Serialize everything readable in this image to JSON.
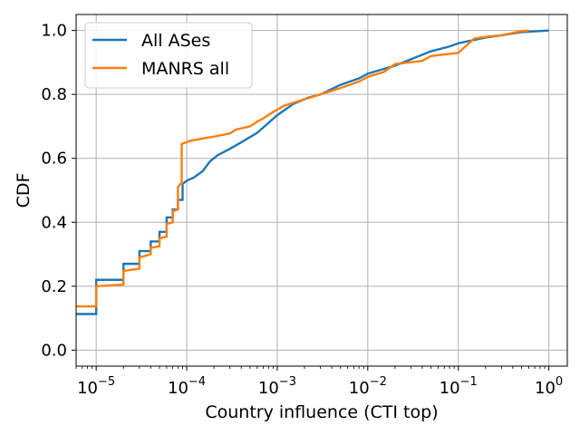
{
  "chart_data": {
    "type": "line",
    "title": "",
    "xlabel": "Country influence (CTI top)",
    "ylabel": "CDF",
    "xscale": "log",
    "xlim": [
      6e-06,
      1.6
    ],
    "ylim": [
      -0.05,
      1.05
    ],
    "grid": true,
    "legend_position": "top-left",
    "x_ticks": [
      {
        "base": "10",
        "exp": "−5",
        "value": 1e-05
      },
      {
        "base": "10",
        "exp": "−4",
        "value": 0.0001
      },
      {
        "base": "10",
        "exp": "−3",
        "value": 0.001
      },
      {
        "base": "10",
        "exp": "−2",
        "value": 0.01
      },
      {
        "base": "10",
        "exp": "−1",
        "value": 0.1
      },
      {
        "base": "10",
        "exp": "0",
        "value": 1
      }
    ],
    "y_ticks": [
      "0.0",
      "0.2",
      "0.4",
      "0.6",
      "0.8",
      "1.0"
    ],
    "y_tick_values": [
      0.0,
      0.2,
      0.4,
      0.6,
      0.8,
      1.0
    ],
    "series": [
      {
        "name": "All ASes",
        "color": "#1f77b4",
        "step": true,
        "points": [
          [
            6e-06,
            0.113
          ],
          [
            1e-05,
            0.113
          ],
          [
            1e-05,
            0.22
          ],
          [
            2e-05,
            0.22
          ],
          [
            2e-05,
            0.27
          ],
          [
            3e-05,
            0.27
          ],
          [
            3e-05,
            0.31
          ],
          [
            4e-05,
            0.31
          ],
          [
            4e-05,
            0.34
          ],
          [
            5e-05,
            0.34
          ],
          [
            5e-05,
            0.37
          ],
          [
            6e-05,
            0.37
          ],
          [
            6e-05,
            0.415
          ],
          [
            7e-05,
            0.415
          ],
          [
            7e-05,
            0.44
          ],
          [
            8e-05,
            0.44
          ],
          [
            8e-05,
            0.47
          ],
          [
            9e-05,
            0.47
          ],
          [
            9e-05,
            0.52
          ],
          [
            0.0001,
            0.53
          ],
          [
            0.00012,
            0.54
          ],
          [
            0.00015,
            0.56
          ],
          [
            0.00018,
            0.59
          ],
          [
            0.00022,
            0.61
          ],
          [
            0.0003,
            0.63
          ],
          [
            0.0004,
            0.65
          ],
          [
            0.0006,
            0.68
          ],
          [
            0.001,
            0.735
          ],
          [
            0.0015,
            0.77
          ],
          [
            0.0022,
            0.79
          ],
          [
            0.003,
            0.8
          ],
          [
            0.005,
            0.83
          ],
          [
            0.008,
            0.85
          ],
          [
            0.01,
            0.865
          ],
          [
            0.02,
            0.89
          ],
          [
            0.03,
            0.91
          ],
          [
            0.05,
            0.935
          ],
          [
            0.08,
            0.95
          ],
          [
            0.1,
            0.96
          ],
          [
            0.2,
            0.978
          ],
          [
            0.3,
            0.985
          ],
          [
            0.5,
            0.995
          ],
          [
            1.0,
            1.0
          ]
        ]
      },
      {
        "name": "MANRS all",
        "color": "#ff7f0e",
        "step": true,
        "points": [
          [
            6e-06,
            0.137
          ],
          [
            1e-05,
            0.137
          ],
          [
            1e-05,
            0.2
          ],
          [
            2e-05,
            0.205
          ],
          [
            2e-05,
            0.248
          ],
          [
            3e-05,
            0.255
          ],
          [
            3e-05,
            0.29
          ],
          [
            4e-05,
            0.3
          ],
          [
            4e-05,
            0.32
          ],
          [
            5e-05,
            0.325
          ],
          [
            5e-05,
            0.35
          ],
          [
            6e-05,
            0.355
          ],
          [
            6e-05,
            0.395
          ],
          [
            7e-05,
            0.4
          ],
          [
            7e-05,
            0.435
          ],
          [
            8e-05,
            0.44
          ],
          [
            8e-05,
            0.51
          ],
          [
            8.5e-05,
            0.52
          ],
          [
            8.8e-05,
            0.52
          ],
          [
            8.8e-05,
            0.645
          ],
          [
            0.00011,
            0.655
          ],
          [
            0.00015,
            0.662
          ],
          [
            0.0002,
            0.668
          ],
          [
            0.0003,
            0.678
          ],
          [
            0.00035,
            0.69
          ],
          [
            0.0005,
            0.7
          ],
          [
            0.0006,
            0.715
          ],
          [
            0.0007,
            0.725
          ],
          [
            0.0009,
            0.745
          ],
          [
            0.0012,
            0.765
          ],
          [
            0.002,
            0.785
          ],
          [
            0.003,
            0.8
          ],
          [
            0.005,
            0.82
          ],
          [
            0.008,
            0.84
          ],
          [
            0.01,
            0.855
          ],
          [
            0.015,
            0.87
          ],
          [
            0.02,
            0.895
          ],
          [
            0.04,
            0.905
          ],
          [
            0.05,
            0.92
          ],
          [
            0.1,
            0.93
          ],
          [
            0.15,
            0.975
          ],
          [
            0.2,
            0.98
          ],
          [
            0.3,
            0.985
          ],
          [
            0.5,
            0.998
          ],
          [
            0.6,
            1.0
          ]
        ]
      }
    ]
  }
}
